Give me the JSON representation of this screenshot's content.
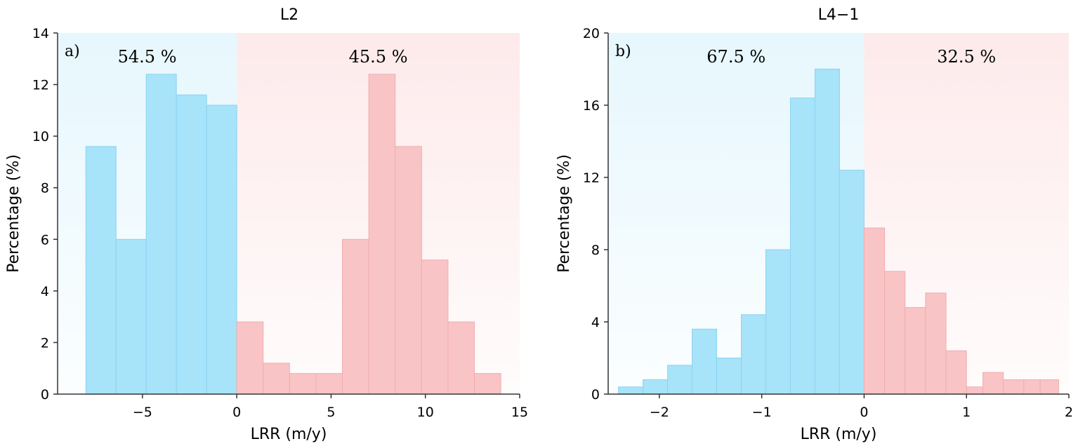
{
  "chart_data": [
    {
      "type": "bar",
      "title": "L2",
      "panel_label": "a)",
      "xlabel": "LRR (m/y)",
      "ylabel": "Percentage (%)",
      "xlim": [
        -9.5,
        15
      ],
      "ylim": [
        0,
        14
      ],
      "xticks": [
        -5,
        0,
        5,
        10,
        15
      ],
      "yticks": [
        0,
        2,
        4,
        6,
        8,
        10,
        12,
        14
      ],
      "xtick_labels": [
        "−5",
        "0",
        "5",
        "10",
        "15"
      ],
      "ytick_labels": [
        "0",
        "2",
        "4",
        "6",
        "8",
        "10",
        "12",
        "14"
      ],
      "split_at": 0,
      "negative_share": "54.5 %",
      "positive_share": "45.5 %",
      "bins": [
        {
          "x0": -8.0,
          "x1": -6.4,
          "value": 9.6
        },
        {
          "x0": -6.4,
          "x1": -4.8,
          "value": 6.0
        },
        {
          "x0": -4.8,
          "x1": -3.2,
          "value": 12.4
        },
        {
          "x0": -3.2,
          "x1": -1.6,
          "value": 11.6
        },
        {
          "x0": -1.6,
          "x1": 0.0,
          "value": 11.2
        },
        {
          "x0": 0.0,
          "x1": 1.4,
          "value": 2.8
        },
        {
          "x0": 1.4,
          "x1": 2.8,
          "value": 1.2
        },
        {
          "x0": 2.8,
          "x1": 4.2,
          "value": 0.8
        },
        {
          "x0": 4.2,
          "x1": 5.6,
          "value": 0.8
        },
        {
          "x0": 5.6,
          "x1": 7.0,
          "value": 6.0
        },
        {
          "x0": 7.0,
          "x1": 8.4,
          "value": 12.4
        },
        {
          "x0": 8.4,
          "x1": 9.8,
          "value": 9.6
        },
        {
          "x0": 9.8,
          "x1": 11.2,
          "value": 5.2
        },
        {
          "x0": 11.2,
          "x1": 12.6,
          "value": 2.8
        },
        {
          "x0": 12.6,
          "x1": 14.0,
          "value": 0.8
        }
      ]
    },
    {
      "type": "bar",
      "title": "L4−1",
      "panel_label": "b)",
      "xlabel": "LRR (m/y)",
      "ylabel": "Percentage (%)",
      "xlim": [
        -2.5,
        2
      ],
      "ylim": [
        0,
        20
      ],
      "xticks": [
        -2,
        -1,
        0,
        1,
        2
      ],
      "yticks": [
        0,
        4,
        8,
        12,
        16,
        20
      ],
      "xtick_labels": [
        "−2",
        "−1",
        "0",
        "1",
        "2"
      ],
      "ytick_labels": [
        "0",
        "4",
        "8",
        "12",
        "16",
        "20"
      ],
      "split_at": 0,
      "negative_share": "67.5 %",
      "positive_share": "32.5 %",
      "bins": [
        {
          "x0": -2.4,
          "x1": -2.16,
          "value": 0.4
        },
        {
          "x0": -2.16,
          "x1": -1.92,
          "value": 0.8
        },
        {
          "x0": -1.92,
          "x1": -1.68,
          "value": 1.6
        },
        {
          "x0": -1.68,
          "x1": -1.44,
          "value": 3.6
        },
        {
          "x0": -1.44,
          "x1": -1.2,
          "value": 2.0
        },
        {
          "x0": -1.2,
          "x1": -0.96,
          "value": 4.4
        },
        {
          "x0": -0.96,
          "x1": -0.72,
          "value": 8.0
        },
        {
          "x0": -0.72,
          "x1": -0.48,
          "value": 16.4
        },
        {
          "x0": -0.48,
          "x1": -0.24,
          "value": 18.0
        },
        {
          "x0": -0.24,
          "x1": 0.0,
          "value": 12.4
        },
        {
          "x0": 0.0,
          "x1": 0.2,
          "value": 9.2
        },
        {
          "x0": 0.2,
          "x1": 0.4,
          "value": 6.8
        },
        {
          "x0": 0.4,
          "x1": 0.6,
          "value": 4.8
        },
        {
          "x0": 0.6,
          "x1": 0.8,
          "value": 5.6
        },
        {
          "x0": 0.8,
          "x1": 1.0,
          "value": 2.4
        },
        {
          "x0": 1.0,
          "x1": 1.16,
          "value": 0.4
        },
        {
          "x0": 1.16,
          "x1": 1.36,
          "value": 1.2
        },
        {
          "x0": 1.36,
          "x1": 1.56,
          "value": 0.8
        },
        {
          "x0": 1.56,
          "x1": 1.72,
          "value": 0.8
        },
        {
          "x0": 1.72,
          "x1": 1.9,
          "value": 0.8
        }
      ]
    }
  ],
  "colors": {
    "negative_bar": "#a7e3f9",
    "negative_bar_edge": "#8dd3f2",
    "positive_bar": "#f9c4c5",
    "positive_bar_edge": "#f0aeb0",
    "negative_bg_top": "#e6f7fd",
    "negative_bg_bottom": "#fbfeff",
    "positive_bg_top": "#fdeaeb",
    "positive_bg_bottom": "#fffcfc",
    "axis": "#333333"
  }
}
